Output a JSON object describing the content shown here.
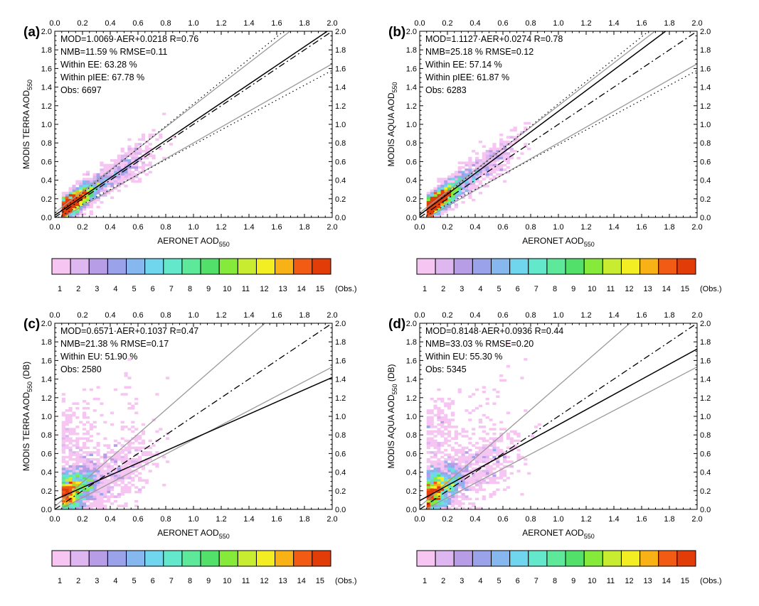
{
  "figure": {
    "colorbar_colors": [
      "#f6c5f2",
      "#deb6f0",
      "#b79de6",
      "#9aa3ea",
      "#86b7ef",
      "#6fd6ee",
      "#63e8cb",
      "#5ee99a",
      "#52e06b",
      "#86ea3b",
      "#c8ec30",
      "#f3ee24",
      "#f9b216",
      "#f25b14",
      "#e23c08"
    ],
    "colorbar_ticks": [
      "1",
      "2",
      "3",
      "4",
      "5",
      "6",
      "7",
      "8",
      "9",
      "10",
      "11",
      "12",
      "13",
      "14",
      "15"
    ],
    "colorbar_unit": "(Obs.)",
    "x_ticks": [
      "0.0",
      "0.2",
      "0.4",
      "0.6",
      "0.8",
      "1.0",
      "1.2",
      "1.4",
      "1.6",
      "1.8",
      "2.0"
    ],
    "y_ticks": [
      "0.0",
      "0.2",
      "0.4",
      "0.6",
      "0.8",
      "1.0",
      "1.2",
      "1.4",
      "1.6",
      "1.8",
      "2.0"
    ],
    "x_label": "AERONET AOD",
    "x_label_sub": "550"
  },
  "chart_data": [
    {
      "type": "heatmap",
      "panel": "(a)",
      "ylabel": "MODIS TERRA AOD",
      "ylabel_sub": "550",
      "ylabel_suffix": "",
      "xlim": [
        0,
        2
      ],
      "ylim": [
        0,
        2
      ],
      "stats": [
        "MOD=1.0069·AER+0.0218 R=0.76",
        "NMB=11.59 % RMSE=0.11",
        "Within EE: 63.28 %",
        "Within pIEE: 67.78 %",
        "Obs: 6697"
      ],
      "fit": {
        "slope": 1.0069,
        "intercept": 0.0218
      },
      "lines": [
        {
          "style": "solid-gray",
          "slope": 1.15,
          "intercept": 0.05
        },
        {
          "style": "solid-gray",
          "slope": 0.85,
          "intercept": -0.05
        },
        {
          "style": "dotted",
          "slope": 1.2,
          "intercept": 0.02
        },
        {
          "style": "dotted",
          "slope": 0.8,
          "intercept": -0.02
        },
        {
          "style": "dashdot",
          "slope": 1.0,
          "intercept": 0.0
        }
      ]
    },
    {
      "type": "heatmap",
      "panel": "(b)",
      "ylabel": "MODIS AQUA AOD",
      "ylabel_sub": "550",
      "ylabel_suffix": "",
      "xlim": [
        0,
        2
      ],
      "ylim": [
        0,
        2
      ],
      "stats": [
        "MOD=1.1127·AER+0.0274 R=0.78",
        "NMB=25.18 % RMSE=0.12",
        "Within EE: 57.14 %",
        "Within pIEE: 61.87 %",
        "Obs: 6283"
      ],
      "fit": {
        "slope": 1.1127,
        "intercept": 0.0274
      },
      "lines": [
        {
          "style": "solid-gray",
          "slope": 1.15,
          "intercept": 0.05
        },
        {
          "style": "solid-gray",
          "slope": 0.85,
          "intercept": -0.05
        },
        {
          "style": "dotted",
          "slope": 1.2,
          "intercept": 0.02
        },
        {
          "style": "dotted",
          "slope": 0.8,
          "intercept": -0.02
        },
        {
          "style": "dashdot",
          "slope": 1.0,
          "intercept": 0.0
        }
      ]
    },
    {
      "type": "heatmap",
      "panel": "(c)",
      "ylabel": "MODIS TERRA AOD",
      "ylabel_sub": "550",
      "ylabel_suffix": " (DB)",
      "xlim": [
        0,
        2
      ],
      "ylim": [
        0,
        2
      ],
      "stats": [
        "MOD=0.6571·AER+0.1037 R=0.47",
        "NMB=21.38 % RMSE=0.17",
        "Within EU: 51.90 %",
        "Obs: 2580"
      ],
      "fit": {
        "slope": 0.6571,
        "intercept": 0.1037
      },
      "lines": [
        {
          "style": "solid-gray",
          "slope": 1.3,
          "intercept": 0.03
        },
        {
          "style": "solid-gray",
          "slope": 0.78,
          "intercept": -0.03
        },
        {
          "style": "dashdot",
          "slope": 1.0,
          "intercept": 0.0
        }
      ]
    },
    {
      "type": "heatmap",
      "panel": "(d)",
      "ylabel": "MODIS AQUA AOD",
      "ylabel_sub": "550",
      "ylabel_suffix": " (DB)",
      "xlim": [
        0,
        2
      ],
      "ylim": [
        0,
        2
      ],
      "stats": [
        "MOD=0.8148·AER+0.0936 R=0.44",
        "NMB=33.03 % RMSE=0.20",
        "Within EU: 55.30 %",
        "Obs: 5345"
      ],
      "fit": {
        "slope": 0.8148,
        "intercept": 0.0936
      },
      "lines": [
        {
          "style": "solid-gray",
          "slope": 1.3,
          "intercept": 0.03
        },
        {
          "style": "solid-gray",
          "slope": 0.78,
          "intercept": -0.03
        },
        {
          "style": "dashdot",
          "slope": 1.0,
          "intercept": 0.0
        }
      ]
    }
  ]
}
